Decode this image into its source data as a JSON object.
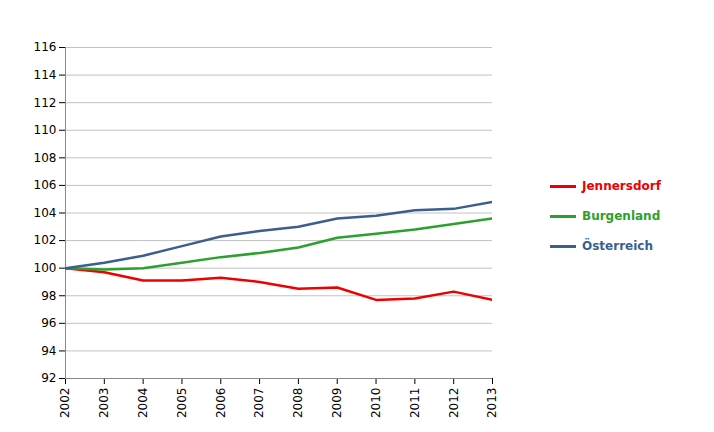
{
  "chart_data": {
    "type": "line",
    "x": [
      2002,
      2003,
      2004,
      2005,
      2006,
      2007,
      2008,
      2009,
      2010,
      2011,
      2012,
      2013
    ],
    "series": [
      {
        "name": "Jennersdorf",
        "color": "#ee0000",
        "values": [
          100,
          99.7,
          99.1,
          99.1,
          99.3,
          99.0,
          98.5,
          98.6,
          97.7,
          97.8,
          98.3,
          97.7
        ]
      },
      {
        "name": "Burgenland",
        "color": "#2ca02c",
        "values": [
          100,
          99.9,
          100.0,
          100.4,
          100.8,
          101.1,
          101.5,
          102.2,
          102.5,
          102.8,
          103.2,
          103.6
        ]
      },
      {
        "name": "Österreich",
        "color": "#3a5f8f",
        "values": [
          100,
          100.4,
          100.9,
          101.6,
          102.3,
          102.7,
          103.0,
          103.6,
          103.8,
          104.2,
          104.3,
          104.8
        ]
      }
    ],
    "xlim": [
      2002,
      2013
    ],
    "xticks": [
      2002,
      2003,
      2004,
      2005,
      2006,
      2007,
      2008,
      2009,
      2010,
      2011,
      2012,
      2013
    ],
    "ylim": [
      92,
      116
    ],
    "yticks": [
      92,
      94,
      96,
      98,
      100,
      102,
      104,
      106,
      108,
      110,
      112,
      114,
      116
    ],
    "grid": true,
    "legend": "right"
  }
}
